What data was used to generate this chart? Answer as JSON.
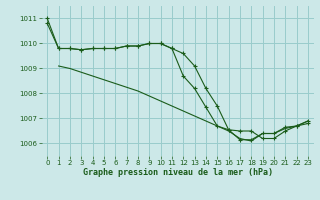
{
  "title": "Graphe pression niveau de la mer (hPa)",
  "background_color": "#cce8e8",
  "grid_color": "#99cccc",
  "line_color": "#1a5c1a",
  "xlim": [
    -0.5,
    23.5
  ],
  "ylim": [
    1005.5,
    1011.5
  ],
  "yticks": [
    1006,
    1007,
    1008,
    1009,
    1010,
    1011
  ],
  "xticks": [
    0,
    1,
    2,
    3,
    4,
    5,
    6,
    7,
    8,
    9,
    10,
    11,
    12,
    13,
    14,
    15,
    16,
    17,
    18,
    19,
    20,
    21,
    22,
    23
  ],
  "series1_x": [
    0,
    1,
    2,
    3,
    4,
    5,
    6,
    7,
    8,
    9,
    10,
    11,
    12,
    13,
    14,
    15,
    16,
    17,
    18,
    19,
    20,
    21,
    22,
    23
  ],
  "series1_y": [
    1010.8,
    1009.8,
    1009.8,
    1009.75,
    1009.8,
    1009.8,
    1009.8,
    1009.9,
    1009.9,
    1010.0,
    1010.0,
    1009.8,
    1009.6,
    1009.1,
    1008.2,
    1007.5,
    1006.55,
    1006.5,
    1006.5,
    1006.2,
    1006.2,
    1006.5,
    1006.7,
    1006.8
  ],
  "series2_x": [
    1,
    2,
    3,
    4,
    5,
    6,
    7,
    8,
    9,
    10,
    11,
    12,
    13,
    14,
    15,
    16,
    17,
    18,
    19,
    20,
    21,
    22,
    23
  ],
  "series2_y": [
    1009.1,
    1009.0,
    1008.85,
    1008.7,
    1008.55,
    1008.4,
    1008.25,
    1008.1,
    1007.9,
    1007.7,
    1007.5,
    1007.3,
    1007.1,
    1006.9,
    1006.7,
    1006.5,
    1006.2,
    1006.1,
    1006.4,
    1006.4,
    1006.6,
    1006.7,
    1006.9
  ],
  "series3_x": [
    0,
    1,
    2,
    3,
    4,
    5,
    6,
    7,
    8,
    9,
    10,
    11,
    12,
    13,
    14,
    15,
    16,
    17,
    18,
    19,
    20,
    21,
    22,
    23
  ],
  "series3_y": [
    1011.0,
    1009.8,
    1009.8,
    1009.75,
    1009.8,
    1009.8,
    1009.8,
    1009.9,
    1009.9,
    1010.0,
    1010.0,
    1009.8,
    1008.7,
    1008.2,
    1007.45,
    1006.7,
    1006.55,
    1006.15,
    1006.15,
    1006.4,
    1006.4,
    1006.65,
    1006.7,
    1006.9
  ]
}
